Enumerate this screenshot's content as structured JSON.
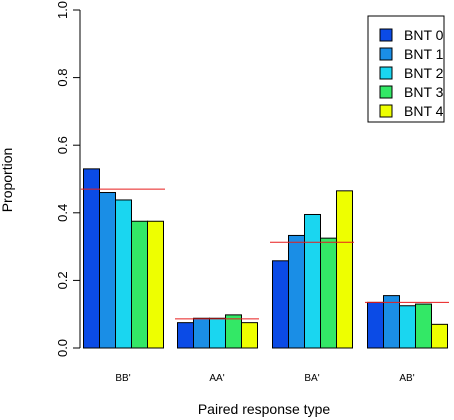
{
  "chart_data": {
    "type": "bar",
    "title": "",
    "xlabel": "Paired response type",
    "ylabel": "Proportion",
    "ylim": [
      0,
      1
    ],
    "yticks": [
      "0.0",
      "0.2",
      "0.4",
      "0.6",
      "0.8",
      "1.0"
    ],
    "ytick_values": [
      0,
      0.2,
      0.4,
      0.6,
      0.8,
      1.0
    ],
    "categories": [
      "BB'",
      "AA'",
      "BA'",
      "AB'"
    ],
    "series": [
      {
        "name": "BNT 0",
        "color": "#0b4be6",
        "values": [
          0.53,
          0.075,
          0.258,
          0.135
        ]
      },
      {
        "name": "BNT 1",
        "color": "#1a8ee6",
        "values": [
          0.46,
          0.088,
          0.333,
          0.155
        ]
      },
      {
        "name": "BNT 2",
        "color": "#1ad6f0",
        "values": [
          0.438,
          0.088,
          0.395,
          0.125
        ]
      },
      {
        "name": "BNT 3",
        "color": "#33e866",
        "values": [
          0.375,
          0.098,
          0.325,
          0.13
        ]
      },
      {
        "name": "BNT 4",
        "color": "#eeff00",
        "values": [
          0.375,
          0.075,
          0.465,
          0.07
        ]
      }
    ],
    "reference_lines": [
      {
        "category": "BB'",
        "value": 0.47,
        "color": "#e81c1c"
      },
      {
        "category": "AA'",
        "value": 0.086,
        "color": "#e81c1c"
      },
      {
        "category": "BA'",
        "value": 0.313,
        "color": "#e81c1c"
      },
      {
        "category": "AB'",
        "value": 0.135,
        "color": "#e81c1c"
      }
    ],
    "legend_position": "top-right",
    "grid": false
  }
}
